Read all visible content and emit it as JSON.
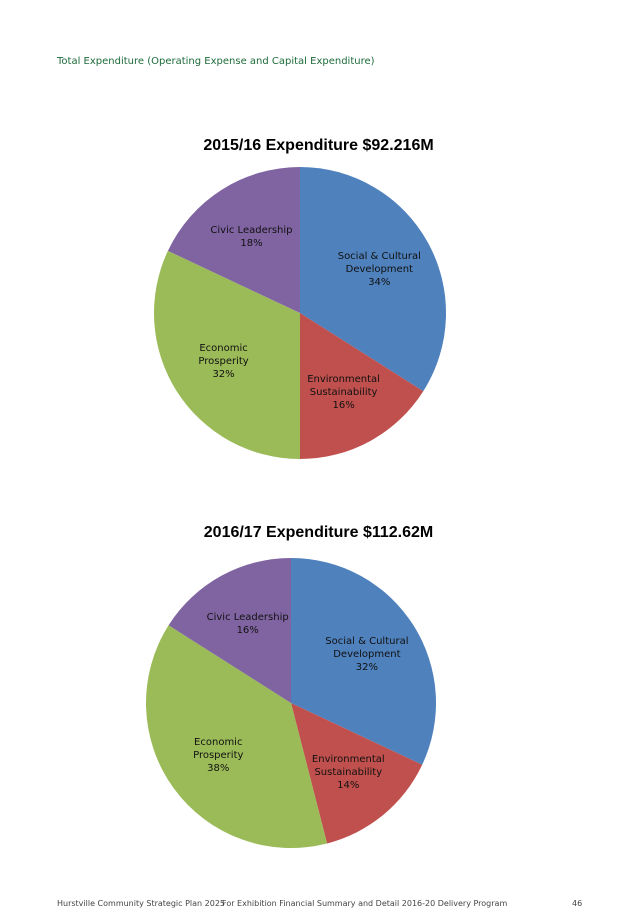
{
  "heading": "Total Expenditure (Operating Expense and Capital Expenditure)",
  "chart_data": [
    {
      "type": "pie",
      "title": "2015/16 Expenditure $92.216M",
      "categories": [
        "Social & Cultural Development",
        "Environmental Sustainability",
        "Economic Prosperity",
        "Civic Leadership"
      ],
      "values": [
        34,
        16,
        32,
        18
      ],
      "value_labels": [
        "34%",
        "16%",
        "32%",
        "18%"
      ],
      "colors": [
        "#4f81bd",
        "#c0504d",
        "#9bbb59",
        "#8064a2"
      ]
    },
    {
      "type": "pie",
      "title": "2016/17 Expenditure $112.62M",
      "categories": [
        "Social & Cultural Development",
        "Environmental Sustainability",
        "Economic Prosperity",
        "Civic Leadership"
      ],
      "values": [
        32,
        14,
        38,
        16
      ],
      "value_labels": [
        "32%",
        "14%",
        "38%",
        "16%"
      ],
      "colors": [
        "#4f81bd",
        "#c0504d",
        "#9bbb59",
        "#8064a2"
      ]
    }
  ],
  "footer": {
    "left": "Hurstville Community Strategic Plan 2025",
    "middle": "For Exhibition Financial Summary and Detail 2016-20 Delivery Program",
    "page": "46"
  }
}
